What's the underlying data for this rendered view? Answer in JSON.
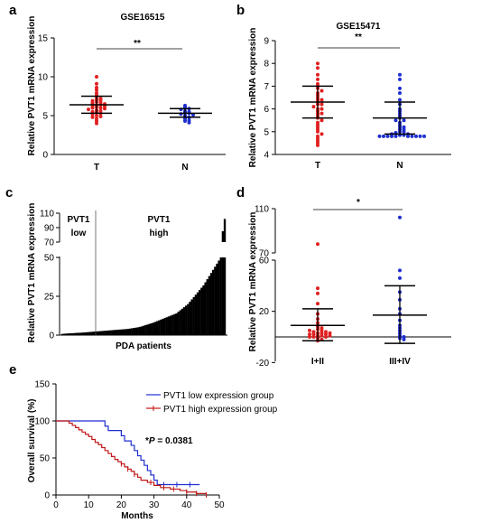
{
  "panel_labels": [
    "a",
    "b",
    "c",
    "d",
    "e"
  ],
  "colors": {
    "tumor": "#e02020",
    "normal": "#1f2fd0",
    "low_group": "#1f2fd0",
    "high_group": "#c01818",
    "bars": "#000000"
  },
  "chart_data": [
    {
      "panel": "a",
      "type": "scatter",
      "title": "GSE16515",
      "ylabel": "Relative PVT1 mRNA expression",
      "ylim": [
        0,
        15
      ],
      "yticks": [
        "0",
        "5",
        "10",
        "15"
      ],
      "categories": [
        "T",
        "N"
      ],
      "significance": "**",
      "groups": [
        {
          "category": "T",
          "mean": 6.4,
          "sd_low": 5.3,
          "sd_high": 7.5,
          "values": [
            10.0,
            9.1,
            8.6,
            8.3,
            7.9,
            7.6,
            7.4,
            7.2,
            7.1,
            7.0,
            6.9,
            6.8,
            6.7,
            6.6,
            6.5,
            6.4,
            6.4,
            6.3,
            6.2,
            6.1,
            6.0,
            6.0,
            5.9,
            5.8,
            5.7,
            5.6,
            5.5,
            5.4,
            5.3,
            5.2,
            5.0,
            4.9,
            4.8,
            4.6,
            4.3,
            4.0
          ]
        },
        {
          "category": "N",
          "mean": 5.3,
          "sd_low": 4.8,
          "sd_high": 5.9,
          "values": [
            6.3,
            6.1,
            5.9,
            5.8,
            5.6,
            5.5,
            5.4,
            5.3,
            5.2,
            5.1,
            5.0,
            4.8,
            4.6,
            4.4,
            4.3,
            4.1
          ]
        }
      ]
    },
    {
      "panel": "b",
      "type": "scatter",
      "title": "GSE15471",
      "ylabel": "Relative PVT1 mRNA expression",
      "ylim": [
        4,
        9
      ],
      "yticks": [
        "4",
        "5",
        "6",
        "7",
        "8",
        "9"
      ],
      "categories": [
        "T",
        "N"
      ],
      "significance": "**",
      "groups": [
        {
          "category": "T",
          "mean": 6.3,
          "sd_low": 5.6,
          "sd_high": 7.0,
          "values": [
            8.0,
            7.8,
            7.5,
            7.3,
            7.1,
            7.0,
            6.9,
            6.8,
            6.7,
            6.6,
            6.5,
            6.4,
            6.4,
            6.3,
            6.2,
            6.2,
            6.1,
            6.0,
            6.0,
            5.9,
            5.8,
            5.8,
            5.7,
            5.6,
            5.5,
            5.4,
            5.3,
            5.2,
            5.1,
            5.0,
            4.9,
            4.8,
            4.7,
            4.6,
            4.5,
            4.4
          ]
        },
        {
          "category": "N",
          "mean": 5.6,
          "sd_low": 4.9,
          "sd_high": 6.3,
          "values": [
            7.5,
            7.3,
            6.9,
            6.7,
            6.4,
            6.2,
            6.0,
            5.9,
            5.8,
            5.7,
            5.6,
            5.5,
            5.5,
            5.4,
            5.3,
            5.2,
            5.2,
            5.1,
            5.1,
            5.0,
            5.0,
            4.95,
            4.9,
            4.9,
            4.85,
            4.85,
            4.8,
            4.8,
            4.8,
            4.8,
            4.8,
            4.8,
            4.8,
            4.8,
            4.8,
            4.8
          ]
        }
      ]
    },
    {
      "panel": "c",
      "type": "bar",
      "ylabel": "Relative PVT1 mRNA expression",
      "xlabel": "PDA patients",
      "yticks": [
        "0",
        "25",
        "50",
        "70",
        "90",
        "110"
      ],
      "axis_break": [
        50,
        70
      ],
      "group_labels": [
        "PVT1 low",
        "PVT1 high"
      ],
      "low_count": 14,
      "values": [
        0.8,
        0.9,
        1.0,
        1.1,
        1.2,
        1.2,
        1.3,
        1.4,
        1.5,
        1.5,
        1.6,
        1.7,
        1.8,
        1.9,
        2.0,
        2.1,
        2.2,
        2.3,
        2.4,
        2.5,
        2.6,
        2.7,
        2.8,
        2.9,
        3.0,
        3.1,
        3.2,
        3.3,
        3.4,
        3.5,
        3.6,
        3.7,
        3.8,
        3.9,
        4.0,
        4.2,
        4.4,
        4.6,
        4.8,
        5.0,
        5.3,
        5.6,
        6.0,
        6.4,
        6.8,
        7.2,
        7.6,
        8.0,
        8.5,
        9.0,
        9.5,
        10.0,
        10.5,
        11.0,
        11.5,
        12.0,
        12.5,
        13.0,
        13.5,
        14.0,
        15.0,
        16.0,
        17.0,
        18.0,
        19.0,
        20.0,
        21.5,
        23.0,
        24.5,
        26.0,
        27.5,
        29.0,
        30.5,
        32.0,
        34.0,
        36.0,
        38.0,
        40.0,
        42.0,
        44.0,
        46.0,
        48.0,
        50.0,
        85.0,
        102.0
      ]
    },
    {
      "panel": "d",
      "type": "scatter",
      "ylabel": "Relative PVT1 mRNA expression",
      "yticks": [
        "-20",
        "20",
        "60",
        "70",
        "110"
      ],
      "axis_break": [
        60,
        70
      ],
      "categories": [
        "I+II",
        "III+IV"
      ],
      "significance": "*",
      "groups": [
        {
          "category": "I+II",
          "mean": 9,
          "sd_low": -3,
          "sd_high": 22,
          "values": [
            78,
            38,
            34,
            26,
            18,
            14,
            11,
            9,
            8,
            7,
            6,
            5,
            4,
            4,
            3,
            3,
            2,
            2,
            1,
            1,
            0,
            0,
            -1,
            -2,
            -3,
            0,
            1,
            2,
            3,
            5
          ]
        },
        {
          "category": "III+IV",
          "mean": 17,
          "sd_low": -5,
          "sd_high": 40,
          "values": [
            102,
            52,
            46,
            35,
            29,
            22,
            18,
            13,
            9,
            7,
            5,
            3,
            1,
            0,
            -1,
            -2
          ]
        }
      ]
    },
    {
      "panel": "e",
      "type": "line",
      "ylabel": "Overall survival (%)",
      "xlabel": "Months",
      "xlim": [
        0,
        50
      ],
      "ylim": [
        0,
        150
      ],
      "xticks": [
        "0",
        "10",
        "20",
        "30",
        "40",
        "50"
      ],
      "yticks": [
        "0",
        "50",
        "100",
        "150"
      ],
      "annotation": {
        "prefix": "*",
        "italic": "P",
        "rest": " = 0.0381"
      },
      "legend_position": "top-right",
      "series": [
        {
          "name": "PVT1 low expression group",
          "steps": [
            [
              0,
              100
            ],
            [
              14,
              100
            ],
            [
              15,
              93
            ],
            [
              16,
              87
            ],
            [
              19,
              87
            ],
            [
              20,
              80
            ],
            [
              21,
              73
            ],
            [
              23,
              67
            ],
            [
              24,
              60
            ],
            [
              25,
              53
            ],
            [
              26,
              47
            ],
            [
              27,
              40
            ],
            [
              28,
              33
            ],
            [
              29,
              27
            ],
            [
              30,
              20
            ],
            [
              31,
              14
            ],
            [
              44,
              14
            ]
          ],
          "censor": [
            [
              33,
              14
            ],
            [
              37,
              14
            ],
            [
              41,
              14
            ]
          ]
        },
        {
          "name": "PVT1 high expression group",
          "steps": [
            [
              0,
              100
            ],
            [
              3,
              100
            ],
            [
              4,
              97
            ],
            [
              5,
              94
            ],
            [
              6,
              91
            ],
            [
              7,
              88
            ],
            [
              8,
              85
            ],
            [
              9,
              82
            ],
            [
              10,
              79
            ],
            [
              11,
              75
            ],
            [
              12,
              71
            ],
            [
              13,
              68
            ],
            [
              14,
              64
            ],
            [
              15,
              60
            ],
            [
              16,
              56
            ],
            [
              17,
              52
            ],
            [
              18,
              48
            ],
            [
              19,
              45
            ],
            [
              20,
              42
            ],
            [
              21,
              38
            ],
            [
              22,
              35
            ],
            [
              23,
              32
            ],
            [
              24,
              28
            ],
            [
              25,
              24
            ],
            [
              26,
              20
            ],
            [
              28,
              17
            ],
            [
              30,
              13
            ],
            [
              32,
              10
            ],
            [
              35,
              8
            ],
            [
              38,
              6
            ],
            [
              40,
              4
            ],
            [
              43,
              2
            ],
            [
              46,
              0
            ]
          ],
          "censor": [
            [
              20,
              42
            ],
            [
              22,
              35
            ],
            [
              24,
              28
            ],
            [
              29,
              17
            ],
            [
              33,
              10
            ],
            [
              36,
              8
            ],
            [
              40,
              4
            ],
            [
              43,
              2
            ],
            [
              46,
              0
            ]
          ]
        }
      ]
    }
  ]
}
